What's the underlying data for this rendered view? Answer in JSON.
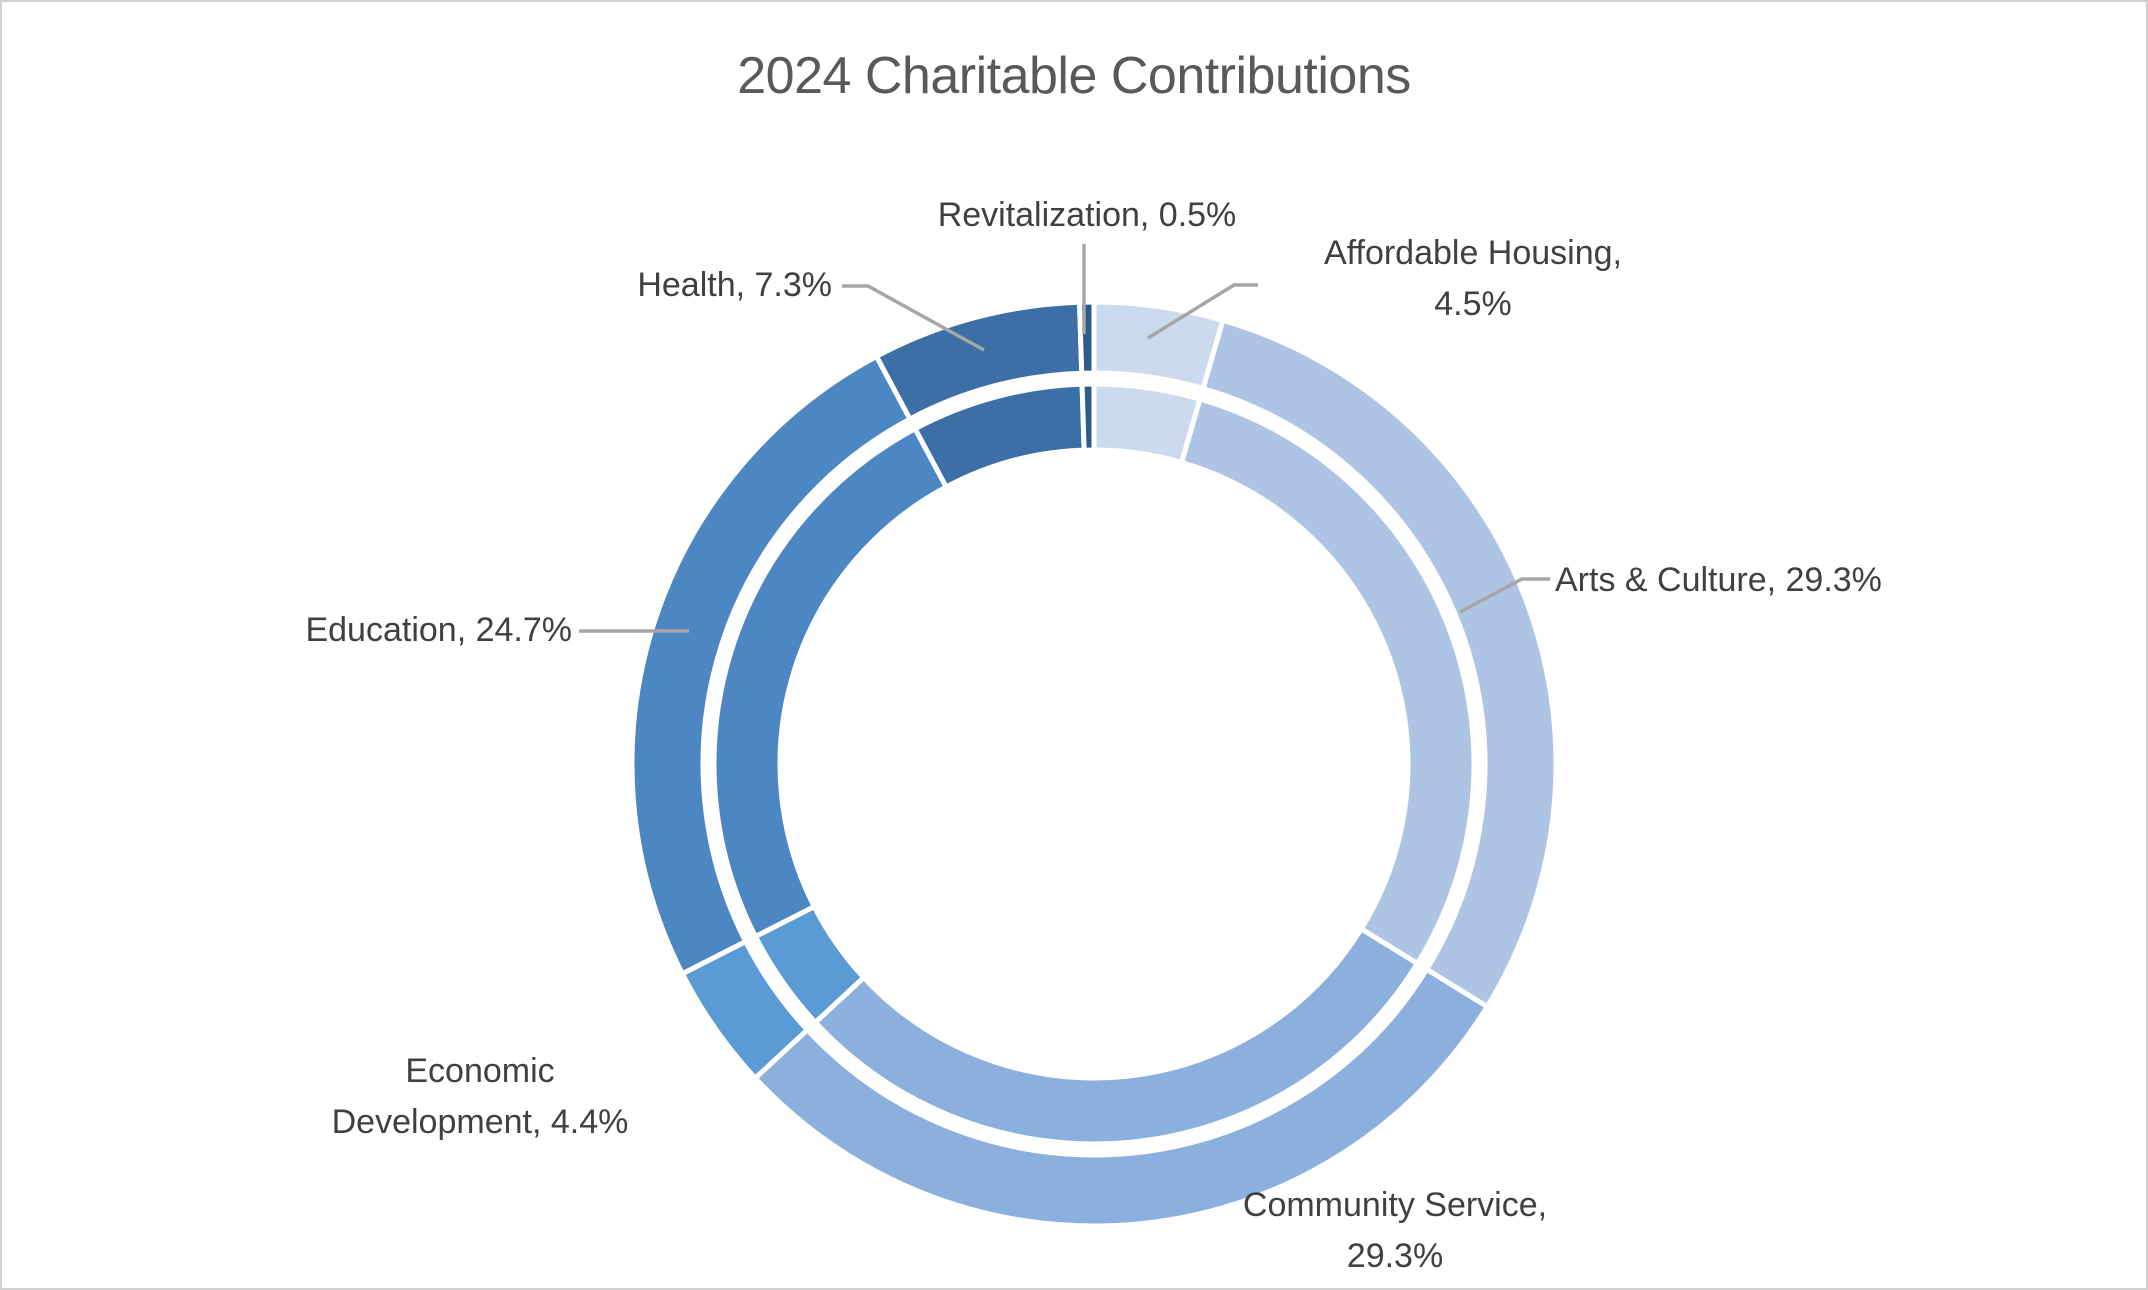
{
  "title": "2024 Charitable Contributions",
  "colors": {
    "title_text": "#595959",
    "label_text": "#404040",
    "leader_line": "#a6a6a6",
    "slice_border": "#ffffff",
    "canvas_border": "#d2cfcf"
  },
  "chart_data": {
    "type": "pie",
    "subtype": "doughnut-two-rings",
    "title": "2024 Charitable Contributions",
    "rings": 2,
    "start_angle_deg": 0,
    "direction": "clockwise",
    "legend": "none",
    "data_label_format": "category, percent",
    "categories": [
      "Affordable Housing",
      "Arts & Culture",
      "Community Service",
      "Economic Development",
      "Education",
      "Health",
      "Revitalization"
    ],
    "values": [
      4.5,
      29.3,
      29.3,
      4.4,
      24.7,
      7.3,
      0.5
    ],
    "slice_colors": [
      "#ccdaed",
      "#aec4e4",
      "#8bb0dd",
      "#5b9bd5",
      "#4d87c3",
      "#3c6fa5",
      "#2e5b8c"
    ]
  },
  "labels": {
    "revitalization": {
      "text": "Revitalization, 0.5%"
    },
    "health": {
      "text": "Health, 7.3%"
    },
    "affordable_housing": {
      "line1": "Affordable Housing,",
      "line2": "4.5%"
    },
    "arts_culture": {
      "text": "Arts & Culture, 29.3%"
    },
    "community_service": {
      "line1": "Community Service,",
      "line2": "29.3%"
    },
    "economic_development": {
      "line1": "Economic",
      "line2": "Development, 4.4%"
    },
    "education": {
      "text": "Education, 24.7%"
    }
  }
}
